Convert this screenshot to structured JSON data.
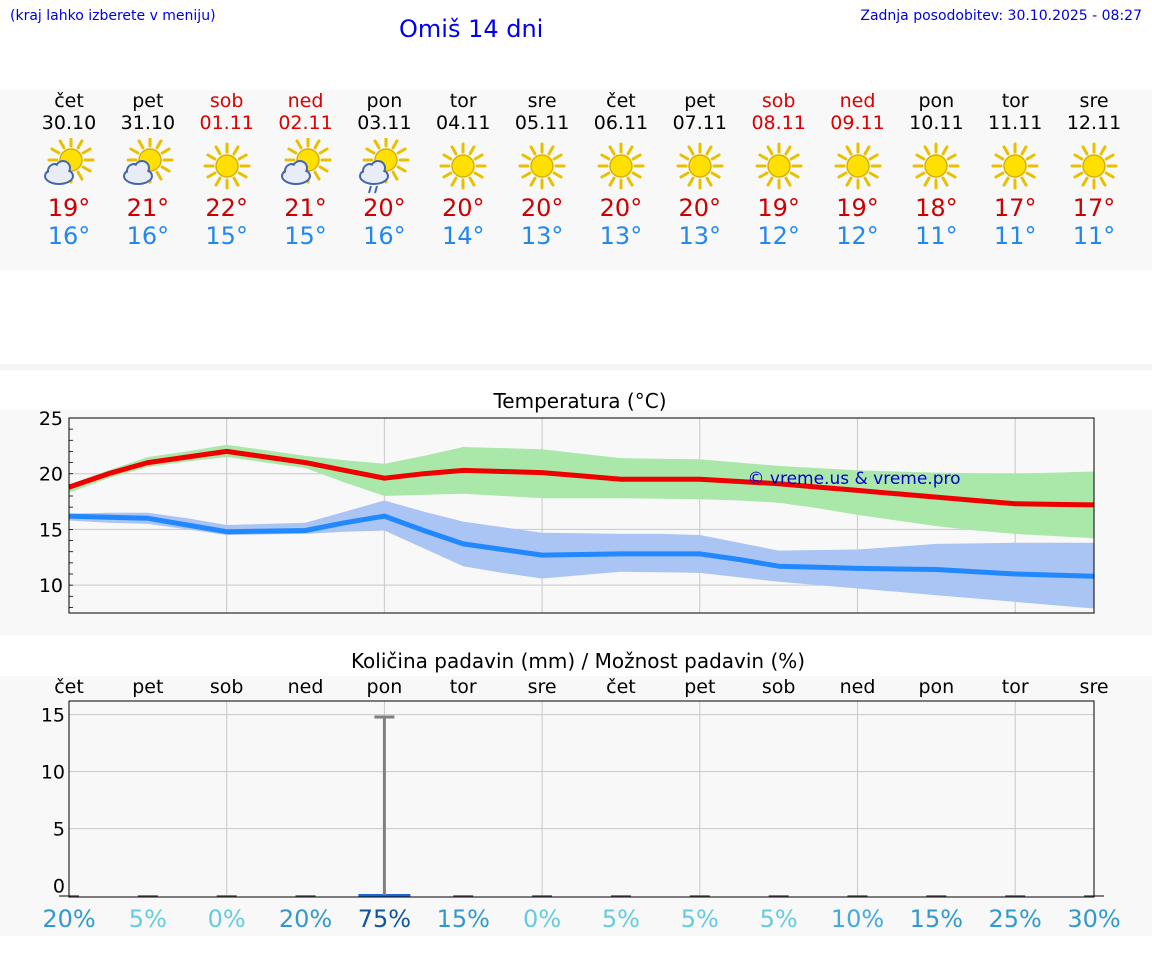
{
  "header": {
    "hint": "(kraj lahko izberete v meniju)",
    "title": "Omiš 14 dni",
    "updated": "Zadnja posodobitev: 30.10.2025 - 08:27"
  },
  "days": [
    {
      "name": "čet",
      "date": "30.10",
      "weekend": false,
      "icon": "sun-cloud-icon",
      "tmax": "19°",
      "tmin": "16°"
    },
    {
      "name": "pet",
      "date": "31.10",
      "weekend": false,
      "icon": "sun-cloud-icon",
      "tmax": "21°",
      "tmin": "16°"
    },
    {
      "name": "sob",
      "date": "01.11",
      "weekend": true,
      "icon": "sun-icon",
      "tmax": "22°",
      "tmin": "15°"
    },
    {
      "name": "ned",
      "date": "02.11",
      "weekend": true,
      "icon": "sun-cloud-icon",
      "tmax": "21°",
      "tmin": "15°"
    },
    {
      "name": "pon",
      "date": "03.11",
      "weekend": false,
      "icon": "sun-cloud-rain-icon",
      "tmax": "20°",
      "tmin": "16°"
    },
    {
      "name": "tor",
      "date": "04.11",
      "weekend": false,
      "icon": "sun-icon",
      "tmax": "20°",
      "tmin": "14°"
    },
    {
      "name": "sre",
      "date": "05.11",
      "weekend": false,
      "icon": "sun-icon",
      "tmax": "20°",
      "tmin": "13°"
    },
    {
      "name": "čet",
      "date": "06.11",
      "weekend": false,
      "icon": "sun-icon",
      "tmax": "20°",
      "tmin": "13°"
    },
    {
      "name": "pet",
      "date": "07.11",
      "weekend": false,
      "icon": "sun-icon",
      "tmax": "20°",
      "tmin": "13°"
    },
    {
      "name": "sob",
      "date": "08.11",
      "weekend": true,
      "icon": "sun-icon",
      "tmax": "19°",
      "tmin": "12°"
    },
    {
      "name": "ned",
      "date": "09.11",
      "weekend": true,
      "icon": "sun-icon",
      "tmax": "19°",
      "tmin": "12°"
    },
    {
      "name": "pon",
      "date": "10.11",
      "weekend": false,
      "icon": "sun-icon",
      "tmax": "18°",
      "tmin": "11°"
    },
    {
      "name": "tor",
      "date": "11.11",
      "weekend": false,
      "icon": "sun-icon",
      "tmax": "17°",
      "tmin": "11°"
    },
    {
      "name": "sre",
      "date": "12.11",
      "weekend": false,
      "icon": "sun-icon",
      "tmax": "17°",
      "tmin": "11°"
    }
  ],
  "colors": {
    "max_line": "#ee0000",
    "min_line": "#2288ff",
    "max_band": "#aae8aa",
    "min_band": "#aac4f4",
    "grid": "#c8c8c8",
    "weekend": "#dd0000",
    "watermark": "#0000cc",
    "bar": "#2266cc",
    "errorbar": "#808080"
  },
  "chart_data": [
    {
      "type": "line",
      "title": "Temperatura (°C)",
      "watermark": "© vreme.us & vreme.pro",
      "ylim": [
        7.5,
        25
      ],
      "yticks": [
        10,
        15,
        20,
        25
      ],
      "x": [
        0,
        0.5,
        1,
        1.5,
        2,
        2.5,
        3,
        3.5,
        4,
        4.5,
        5,
        5.5,
        6,
        6.5,
        7,
        7.5,
        8,
        8.5,
        9,
        9.5,
        10,
        10.5,
        11,
        11.5,
        12,
        12.5,
        13
      ],
      "series": [
        {
          "name": "max",
          "values": [
            18.8,
            20.0,
            21.0,
            21.5,
            22.0,
            21.5,
            21.0,
            20.3,
            19.6,
            20.0,
            20.3,
            20.2,
            20.1,
            19.8,
            19.5,
            19.5,
            19.5,
            19.3,
            19.1,
            18.8,
            18.5,
            18.2,
            17.9,
            17.6,
            17.3,
            17.25,
            17.2
          ]
        },
        {
          "name": "min",
          "values": [
            16.2,
            16.1,
            16.0,
            15.4,
            14.8,
            14.85,
            14.9,
            15.6,
            16.2,
            14.9,
            13.7,
            13.2,
            12.7,
            12.75,
            12.8,
            12.8,
            12.8,
            12.3,
            11.7,
            11.6,
            11.5,
            11.45,
            11.4,
            11.2,
            11.0,
            10.9,
            10.8
          ]
        },
        {
          "name": "max_band_upper",
          "values": [
            19.0,
            20.3,
            21.5,
            22.0,
            22.6,
            22.1,
            21.6,
            21.2,
            20.9,
            21.6,
            22.4,
            22.3,
            22.2,
            21.8,
            21.4,
            21.35,
            21.3,
            21.0,
            20.7,
            20.5,
            20.3,
            20.2,
            20.1,
            20.05,
            20.0,
            20.1,
            20.2
          ]
        },
        {
          "name": "max_band_lower",
          "values": [
            18.3,
            19.6,
            20.6,
            21.1,
            21.5,
            21.0,
            20.5,
            19.2,
            18.0,
            18.1,
            18.2,
            18.0,
            17.8,
            17.8,
            17.8,
            17.75,
            17.7,
            17.6,
            17.4,
            16.9,
            16.3,
            15.8,
            15.3,
            14.9,
            14.6,
            14.4,
            14.2
          ]
        },
        {
          "name": "min_band_upper",
          "values": [
            16.4,
            16.5,
            16.5,
            16.0,
            15.4,
            15.5,
            15.6,
            16.6,
            17.6,
            16.6,
            15.7,
            15.2,
            14.7,
            14.65,
            14.6,
            14.6,
            14.5,
            13.8,
            13.1,
            13.15,
            13.2,
            13.45,
            13.7,
            13.75,
            13.8,
            13.8,
            13.8
          ]
        },
        {
          "name": "min_band_lower",
          "values": [
            15.8,
            15.6,
            15.5,
            15.0,
            14.5,
            14.55,
            14.6,
            14.8,
            14.9,
            13.3,
            11.7,
            11.1,
            10.6,
            10.9,
            11.2,
            11.15,
            11.1,
            10.7,
            10.3,
            10.0,
            9.7,
            9.4,
            9.1,
            8.8,
            8.5,
            8.2,
            7.9
          ]
        }
      ]
    },
    {
      "type": "bar",
      "title": "Količina padavin (mm) / Možnost padavin (%)",
      "categories": [
        "čet",
        "pet",
        "sob",
        "ned",
        "pon",
        "tor",
        "sre",
        "čet",
        "pet",
        "sob",
        "ned",
        "pon",
        "tor",
        "sre"
      ],
      "ylim": [
        -1,
        16.2
      ],
      "yticks": [
        0,
        5,
        10,
        15
      ],
      "values": [
        0,
        0,
        0,
        0,
        0.2,
        0,
        0,
        0,
        0,
        0,
        0,
        0,
        0,
        0
      ],
      "error_max": [
        0,
        0,
        0,
        0,
        14.8,
        0,
        0,
        0,
        0,
        0,
        0,
        0,
        0,
        0
      ],
      "probability": [
        "20%",
        "5%",
        "0%",
        "20%",
        "75%",
        "15%",
        "0%",
        "5%",
        "5%",
        "5%",
        "10%",
        "15%",
        "25%",
        "30%"
      ],
      "probability_colors": [
        "#3399cc",
        "#66ccdd",
        "#66ccdd",
        "#3399cc",
        "#115599",
        "#3399cc",
        "#66ccdd",
        "#66ccdd",
        "#66ccdd",
        "#66ccdd",
        "#44aadd",
        "#3399cc",
        "#3399cc",
        "#3399cc"
      ]
    }
  ]
}
